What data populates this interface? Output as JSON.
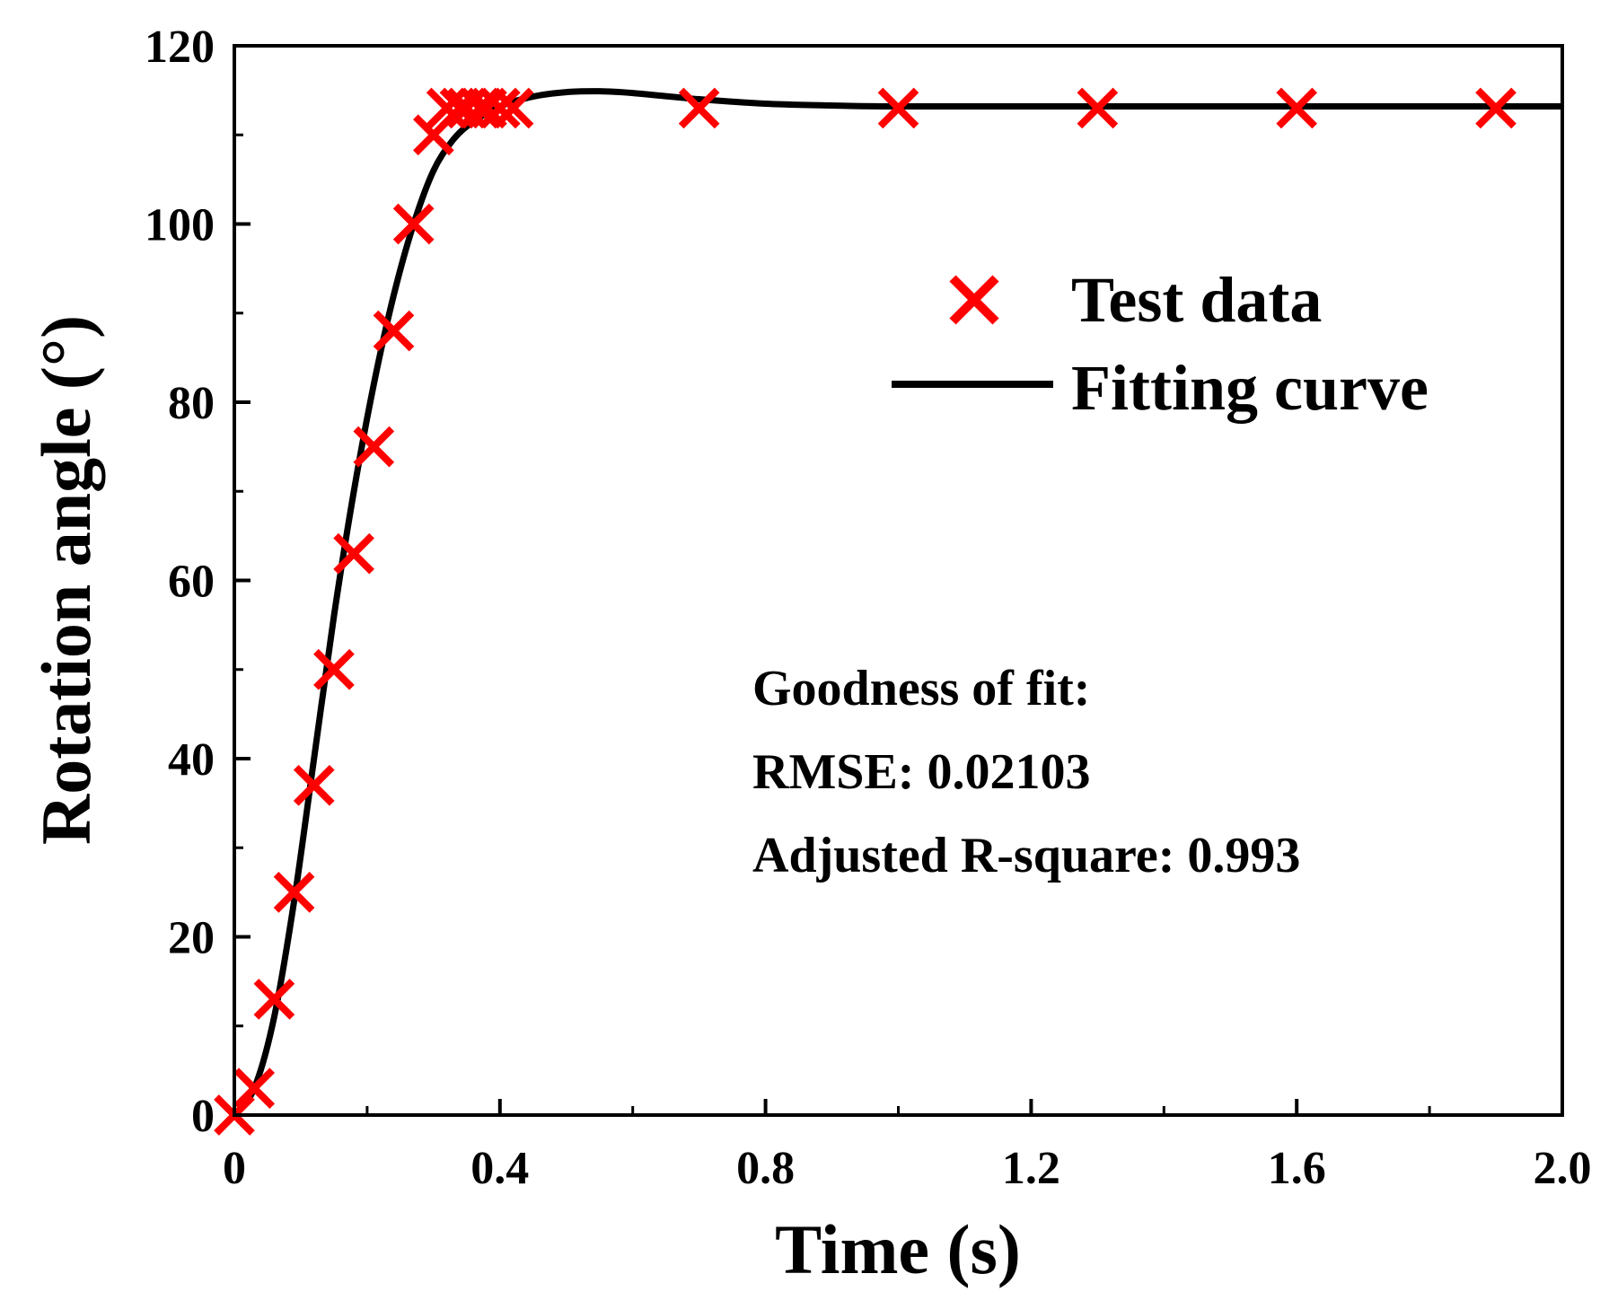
{
  "chart_data": {
    "type": "scatter",
    "title": "",
    "xlabel": "Time (s)",
    "ylabel": "Rotation angle (°)",
    "xlim": [
      0,
      2.0
    ],
    "ylim": [
      0,
      120
    ],
    "xticks": [
      0,
      0.4,
      0.8,
      1.2,
      1.6,
      2.0
    ],
    "xtick_labels": [
      "0",
      "0.4",
      "0.8",
      "1.2",
      "1.6",
      "2.0"
    ],
    "yticks": [
      0,
      20,
      40,
      60,
      80,
      100,
      120
    ],
    "ytick_labels": [
      "0",
      "20",
      "40",
      "60",
      "80",
      "100",
      "120"
    ],
    "grid": false,
    "legend_position": "top-right",
    "series": [
      {
        "name": "Test data",
        "type": "scatter",
        "marker": "x",
        "color": "#ff0000",
        "x": [
          0,
          0.03,
          0.06,
          0.09,
          0.12,
          0.15,
          0.18,
          0.21,
          0.24,
          0.27,
          0.3,
          0.32,
          0.34,
          0.35,
          0.37,
          0.38,
          0.4,
          0.42,
          0.7,
          1.0,
          1.3,
          1.6,
          1.9
        ],
        "y": [
          0,
          3,
          13,
          25,
          37,
          50,
          63,
          75,
          88,
          100,
          110,
          113,
          113,
          113,
          113,
          113,
          113,
          113,
          113,
          113,
          113,
          113,
          113
        ]
      },
      {
        "name": "Fitting curve",
        "type": "line",
        "color": "#000000",
        "x": [
          0,
          0.03,
          0.06,
          0.09,
          0.12,
          0.15,
          0.18,
          0.21,
          0.24,
          0.27,
          0.3,
          0.33,
          0.36,
          0.4,
          0.45,
          0.5,
          0.55,
          0.6,
          0.7,
          0.8,
          0.9,
          1.0,
          1.3,
          1.6,
          2.0
        ],
        "y": [
          0,
          3,
          11,
          24,
          40,
          56,
          70,
          82,
          92,
          100,
          106,
          109.5,
          111.5,
          113.2,
          114.3,
          114.8,
          114.9,
          114.7,
          114,
          113.5,
          113.3,
          113.2,
          113.2,
          113.2,
          113.2
        ]
      }
    ],
    "annotations": [
      "Goodness of fit:",
      "RMSE: 0.02103",
      "Adjusted R-square: 0.993"
    ]
  }
}
